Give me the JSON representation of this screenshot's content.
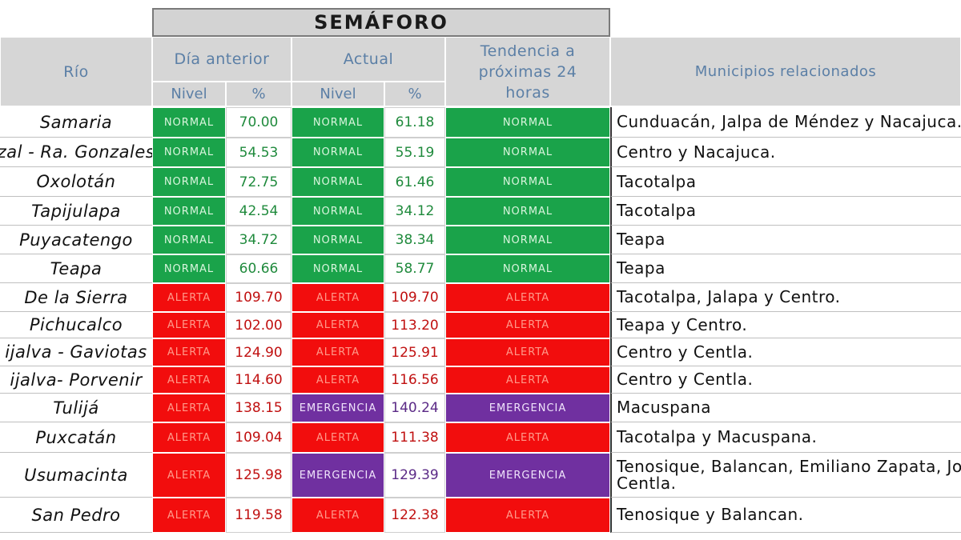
{
  "header": {
    "semaforo": "SEMÁFORO",
    "rio": "Río",
    "dia_anterior": "Día anterior",
    "actual": "Actual",
    "tendencia": "Tendencia a próximas 24 horas",
    "municipios": "Municipios relacionados",
    "nivel_1": "Nivel",
    "pct_1": "%",
    "nivel_2": "Nivel",
    "pct_2": "%"
  },
  "colors": {
    "normal": "#1aa34a",
    "alerta": "#f20d0d",
    "emergencia": "#7030a0"
  },
  "rows": [
    {
      "river": "Samaria",
      "prev_level": "NORMAL",
      "prev_pct": "70.00",
      "curr_level": "NORMAL",
      "curr_pct": "61.18",
      "trend": "NORMAL",
      "municipios": "Cunduacán, Jalpa de Méndez y Nacajuca."
    },
    {
      "river": "zal - Ra. Gonzales",
      "prev_level": "NORMAL",
      "prev_pct": "54.53",
      "curr_level": "NORMAL",
      "curr_pct": "55.19",
      "trend": "NORMAL",
      "municipios": "Centro y Nacajuca."
    },
    {
      "river": "Oxolotán",
      "prev_level": "NORMAL",
      "prev_pct": "72.75",
      "curr_level": "NORMAL",
      "curr_pct": "61.46",
      "trend": "NORMAL",
      "municipios": "Tacotalpa"
    },
    {
      "river": "Tapijulapa",
      "prev_level": "NORMAL",
      "prev_pct": "42.54",
      "curr_level": "NORMAL",
      "curr_pct": "34.12",
      "trend": "NORMAL",
      "municipios": "Tacotalpa"
    },
    {
      "river": "Puyacatengo",
      "prev_level": "NORMAL",
      "prev_pct": "34.72",
      "curr_level": "NORMAL",
      "curr_pct": "38.34",
      "trend": "NORMAL",
      "municipios": "Teapa"
    },
    {
      "river": "Teapa",
      "prev_level": "NORMAL",
      "prev_pct": "60.66",
      "curr_level": "NORMAL",
      "curr_pct": "58.77",
      "trend": "NORMAL",
      "municipios": "Teapa"
    },
    {
      "river": "De la Sierra",
      "prev_level": "ALERTA",
      "prev_pct": "109.70",
      "curr_level": "ALERTA",
      "curr_pct": "109.70",
      "trend": "ALERTA",
      "municipios": "Tacotalpa, Jalapa y Centro."
    },
    {
      "river": "Pichucalco",
      "prev_level": "ALERTA",
      "prev_pct": "102.00",
      "curr_level": "ALERTA",
      "curr_pct": "113.20",
      "trend": "ALERTA",
      "municipios": "Teapa y Centro."
    },
    {
      "river": "ijalva - Gaviotas",
      "prev_level": "ALERTA",
      "prev_pct": "124.90",
      "curr_level": "ALERTA",
      "curr_pct": "125.91",
      "trend": "ALERTA",
      "municipios": "Centro y Centla."
    },
    {
      "river": "ijalva- Porvenir",
      "prev_level": "ALERTA",
      "prev_pct": "114.60",
      "curr_level": "ALERTA",
      "curr_pct": "116.56",
      "trend": "ALERTA",
      "municipios": "Centro y Centla."
    },
    {
      "river": "Tulijá",
      "prev_level": "ALERTA",
      "prev_pct": "138.15",
      "curr_level": "EMERGENCIA",
      "curr_pct": "140.24",
      "trend": "EMERGENCIA",
      "municipios": "Macuspana"
    },
    {
      "river": "Puxcatán",
      "prev_level": "ALERTA",
      "prev_pct": "109.04",
      "curr_level": "ALERTA",
      "curr_pct": "111.38",
      "trend": "ALERTA",
      "municipios": "Tacotalpa y Macuspana."
    },
    {
      "river": "Usumacinta",
      "prev_level": "ALERTA",
      "prev_pct": "125.98",
      "curr_level": "EMERGENCIA",
      "curr_pct": "129.39",
      "trend": "EMERGENCIA",
      "municipios": "Tenosique, Balancan, Emiliano Zapata, Jo y Centla."
    },
    {
      "river": "San Pedro",
      "prev_level": "ALERTA",
      "prev_pct": "119.58",
      "curr_level": "ALERTA",
      "curr_pct": "122.38",
      "trend": "ALERTA",
      "municipios": "Tenosique y Balancan."
    }
  ]
}
